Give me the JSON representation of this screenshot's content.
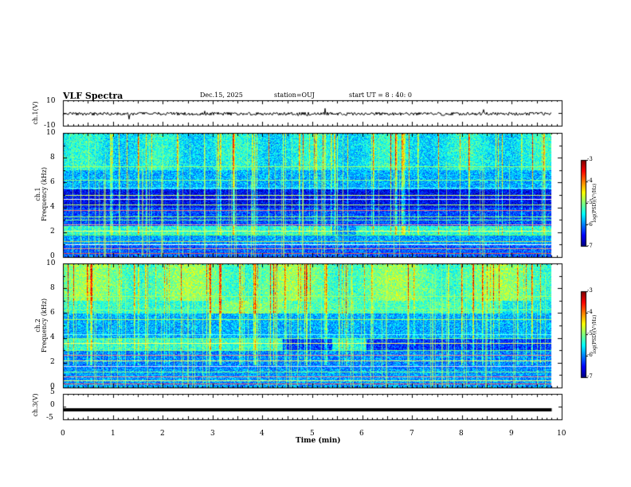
{
  "header": {
    "title": "VLF Spectra",
    "date": "Dec.15, 2025",
    "station": "station=OUJ",
    "start": "start UT = 8 : 40: 0"
  },
  "chart_data": [
    {
      "type": "line",
      "panel": "ch1-waveform",
      "ylabel": "ch.1(V)",
      "ylim": [
        -10,
        10
      ],
      "y_ticks": [
        "10",
        "-10"
      ],
      "xlim": [
        0,
        10
      ],
      "baseline": 0
    },
    {
      "type": "heatmap",
      "panel": "ch1-spectrogram",
      "ylabel_line1": "ch.1",
      "ylabel_line2": "Frequency (kHz)",
      "xlim": [
        0,
        10
      ],
      "ylim": [
        0,
        10
      ],
      "y_ticks": [
        "0",
        "2",
        "4",
        "6",
        "8",
        "10"
      ],
      "colorbar": {
        "label": "log(PSD)(V²/Hz)",
        "range": [
          -7,
          -3
        ],
        "ticks": [
          "-3",
          "-4",
          "-5",
          "-6",
          "-7"
        ]
      }
    },
    {
      "type": "heatmap",
      "panel": "ch2-spectrogram",
      "ylabel_line1": "ch.2",
      "ylabel_line2": "Frequency (kHz)",
      "xlim": [
        0,
        10
      ],
      "ylim": [
        0,
        10
      ],
      "y_ticks": [
        "0",
        "2",
        "4",
        "6",
        "8",
        "10"
      ],
      "colorbar": {
        "label": "log(PSD)(V²/Hz)",
        "range": [
          -7,
          -3
        ],
        "ticks": [
          "-3",
          "-4",
          "-5",
          "-6",
          "-7"
        ]
      }
    },
    {
      "type": "line",
      "panel": "ch3-waveform",
      "ylabel": "ch.3(V)",
      "ylim": [
        -5,
        5
      ],
      "y_ticks": [
        "5",
        "0",
        "-5"
      ],
      "xlim": [
        0,
        10
      ],
      "baseline": -1.3
    }
  ],
  "xaxis": {
    "label": "Time (min)",
    "ticks": [
      "0",
      "1",
      "2",
      "3",
      "4",
      "5",
      "6",
      "7",
      "8",
      "9",
      "10"
    ],
    "data_end": 9.8
  }
}
